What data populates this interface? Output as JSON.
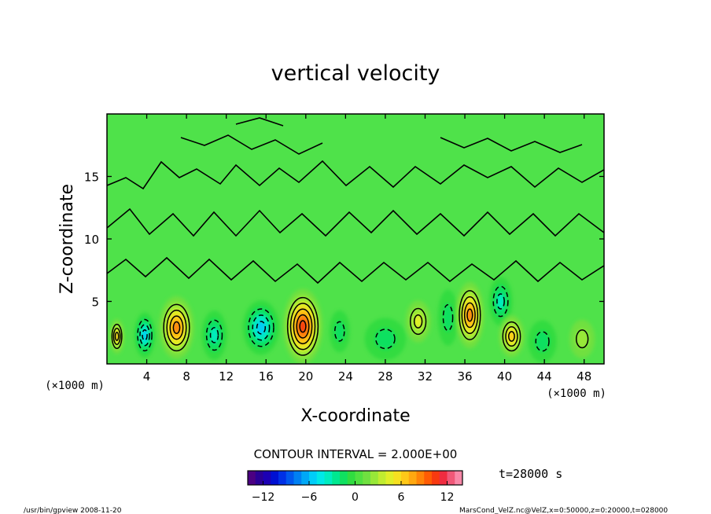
{
  "chart_data": {
    "type": "heatmap",
    "title": "vertical velocity",
    "xlabel": "X-coordinate",
    "ylabel": "Z-coordinate",
    "x_unit_label": "(×1000 m)",
    "y_unit_label": "(×1000 m)",
    "xlim": [
      0,
      50
    ],
    "ylim": [
      0,
      20
    ],
    "x_ticks": [
      4,
      8,
      12,
      16,
      20,
      24,
      28,
      32,
      36,
      40,
      44,
      48
    ],
    "x_tick_labels": [
      "4",
      "8",
      "12",
      "16",
      "20",
      "24",
      "28",
      "32",
      "36",
      "40",
      "44",
      "48"
    ],
    "y_ticks": [
      5,
      10,
      15
    ],
    "y_tick_labels": [
      "5",
      "10",
      "15"
    ],
    "contour_interval_text": "CONTOUR INTERVAL = 2.000E+00",
    "time_text": "t=28000 s",
    "colorbar": {
      "range": [
        -14,
        14
      ],
      "ticks": [
        -12,
        -6,
        0,
        6,
        12
      ],
      "tick_labels": [
        "−12",
        "−6",
        "0",
        "6",
        "12"
      ],
      "colors": [
        "#4b0082",
        "#2a0096",
        "#1c00b4",
        "#0010d2",
        "#0030e6",
        "#0058ee",
        "#0080f2",
        "#00a8f6",
        "#00cdf8",
        "#00e8e8",
        "#00ecc0",
        "#00e890",
        "#10e060",
        "#30dc40",
        "#50e040",
        "#70e040",
        "#98e838",
        "#c0ec30",
        "#e0ee28",
        "#f6e020",
        "#ffc818",
        "#ffa810",
        "#ff8408",
        "#ff5c04",
        "#f83a10",
        "#f02c40",
        "#f05878",
        "#f888a8"
      ]
    },
    "cells": [
      {
        "x": 1.0,
        "z": 2.2,
        "w": 0.9,
        "h": 2.0,
        "level": 6
      },
      {
        "x": 3.8,
        "z": 2.3,
        "w": 1.3,
        "h": 2.6,
        "level": -6
      },
      {
        "x": 7.0,
        "z": 2.9,
        "w": 2.2,
        "h": 3.6,
        "level": 8
      },
      {
        "x": 10.8,
        "z": 2.3,
        "w": 1.6,
        "h": 2.8,
        "level": -4
      },
      {
        "x": 15.5,
        "z": 2.9,
        "w": 2.3,
        "h": 3.1,
        "level": -6
      },
      {
        "x": 19.7,
        "z": 3.0,
        "w": 2.5,
        "h": 4.3,
        "level": 10
      },
      {
        "x": 23.4,
        "z": 2.6,
        "w": 1.3,
        "h": 2.4,
        "level": -2
      },
      {
        "x": 28.0,
        "z": 2.0,
        "w": 2.6,
        "h": 2.4,
        "level": -2
      },
      {
        "x": 31.3,
        "z": 3.4,
        "w": 1.6,
        "h": 2.4,
        "level": 4
      },
      {
        "x": 34.3,
        "z": 3.7,
        "w": 1.3,
        "h": 3.2,
        "level": -2
      },
      {
        "x": 36.5,
        "z": 3.9,
        "w": 1.8,
        "h": 3.8,
        "level": 8
      },
      {
        "x": 39.6,
        "z": 5.0,
        "w": 1.5,
        "h": 2.8,
        "level": -4
      },
      {
        "x": 40.7,
        "z": 2.2,
        "w": 1.6,
        "h": 2.4,
        "level": 6
      },
      {
        "x": 43.8,
        "z": 1.8,
        "w": 1.8,
        "h": 2.4,
        "level": -2
      },
      {
        "x": 47.8,
        "z": 2.0,
        "w": 1.6,
        "h": 2.2,
        "level": 2
      }
    ]
  },
  "footer": {
    "left": "/usr/bin/gpview   2008-11-20",
    "right": "MarsCond_VelZ.nc@VelZ,x=0:50000,z=0:20000,t=028000"
  }
}
